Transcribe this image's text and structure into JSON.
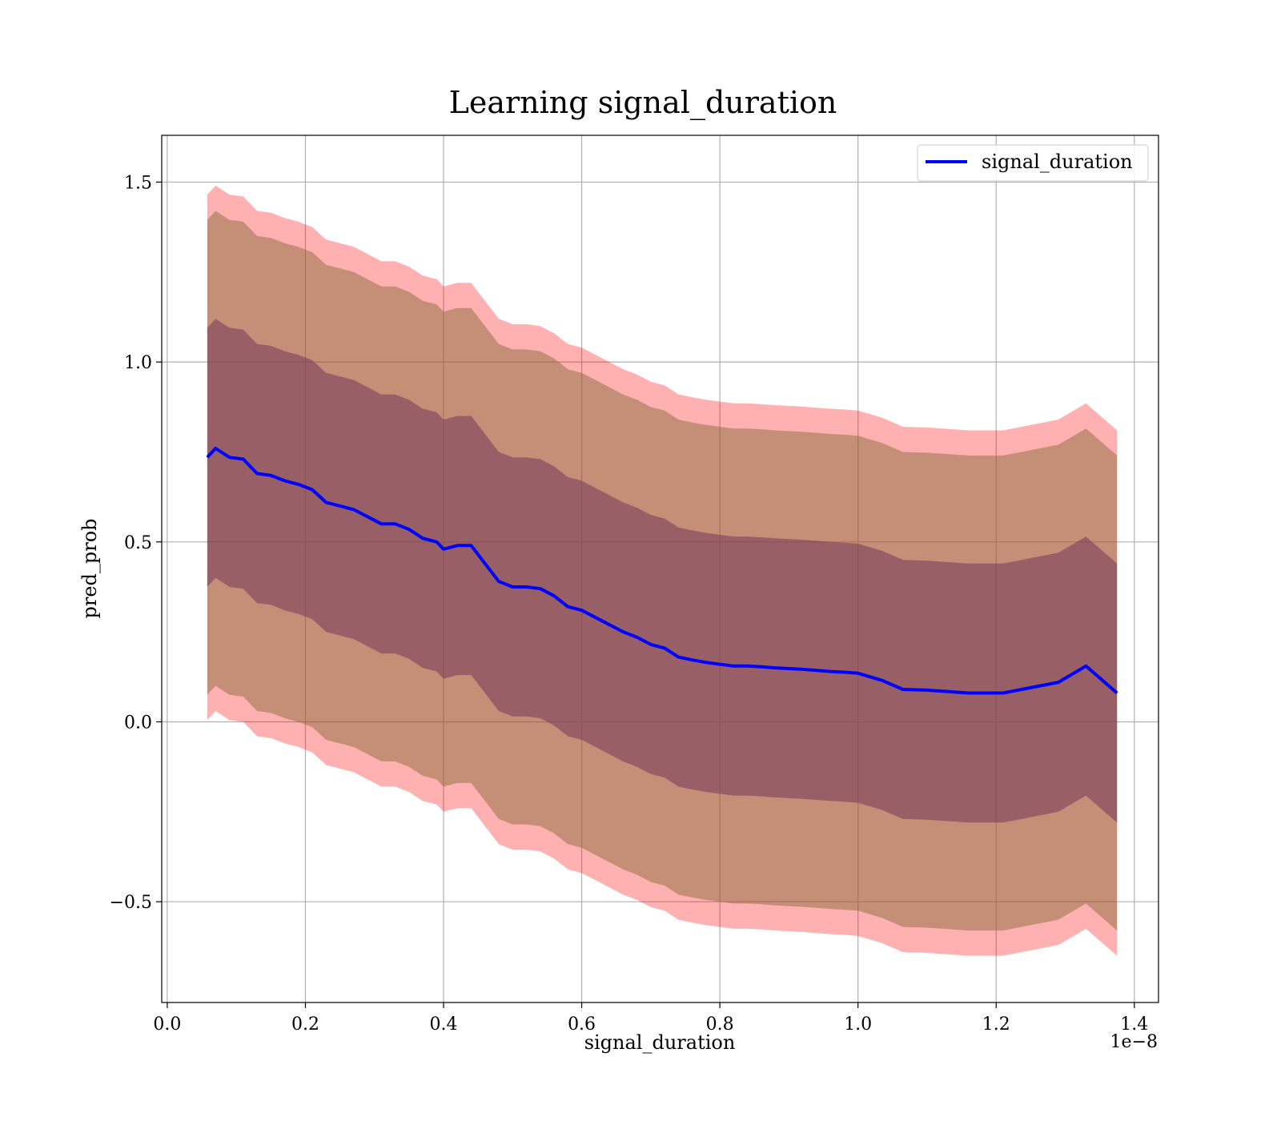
{
  "chart_data": {
    "type": "line",
    "title": "Learning signal_duration",
    "xlabel": "signal_duration",
    "ylabel": "pred_prob",
    "x_offset_label": "1e−8",
    "xlim": [
      -0.008,
      1.435
    ],
    "ylim": [
      -0.78,
      1.63
    ],
    "x_ticks": [
      0.0,
      0.2,
      0.4,
      0.6,
      0.8,
      1.0,
      1.2,
      1.4
    ],
    "x_tick_labels": [
      "0.0",
      "0.2",
      "0.4",
      "0.6",
      "0.8",
      "1.0",
      "1.2",
      "1.4"
    ],
    "y_ticks": [
      -0.5,
      0.0,
      0.5,
      1.0,
      1.5
    ],
    "y_tick_labels": [
      "−0.5",
      "0.0",
      "0.5",
      "1.0",
      "1.5"
    ],
    "grid": true,
    "legend_position": "top-right",
    "colors": {
      "line": "#0000ff",
      "band_outer": "#ff0000",
      "band_middle": "#8b6b3d",
      "band_inner": "#7a3f5e",
      "grid": "#b0b0b0"
    },
    "series": [
      {
        "name": "signal_duration",
        "x": [
          0.058,
          0.07,
          0.09,
          0.11,
          0.13,
          0.15,
          0.17,
          0.19,
          0.21,
          0.23,
          0.25,
          0.27,
          0.29,
          0.31,
          0.33,
          0.35,
          0.37,
          0.39,
          0.4,
          0.42,
          0.44,
          0.46,
          0.48,
          0.5,
          0.52,
          0.54,
          0.56,
          0.58,
          0.6,
          0.62,
          0.64,
          0.66,
          0.68,
          0.7,
          0.72,
          0.74,
          0.76,
          0.78,
          0.8,
          0.82,
          0.84,
          0.86,
          0.88,
          0.9,
          0.92,
          0.94,
          0.96,
          0.98,
          1.0,
          1.035,
          1.065,
          1.1,
          1.16,
          1.21,
          1.29,
          1.33,
          1.375
        ],
        "y": [
          0.735,
          0.76,
          0.735,
          0.73,
          0.69,
          0.685,
          0.67,
          0.66,
          0.645,
          0.61,
          0.6,
          0.59,
          0.57,
          0.55,
          0.55,
          0.535,
          0.51,
          0.5,
          0.48,
          0.49,
          0.49,
          0.44,
          0.39,
          0.375,
          0.375,
          0.37,
          0.35,
          0.32,
          0.31,
          0.29,
          0.27,
          0.25,
          0.235,
          0.215,
          0.205,
          0.18,
          0.172,
          0.165,
          0.16,
          0.155,
          0.155,
          0.153,
          0.15,
          0.148,
          0.146,
          0.143,
          0.14,
          0.138,
          0.135,
          0.115,
          0.09,
          0.088,
          0.08,
          0.08,
          0.11,
          0.155,
          0.08
        ]
      }
    ],
    "bands": [
      {
        "name": "outer",
        "half_width": 0.73
      },
      {
        "name": "middle",
        "half_width": 0.66
      },
      {
        "name": "inner",
        "half_width": 0.36
      }
    ]
  }
}
